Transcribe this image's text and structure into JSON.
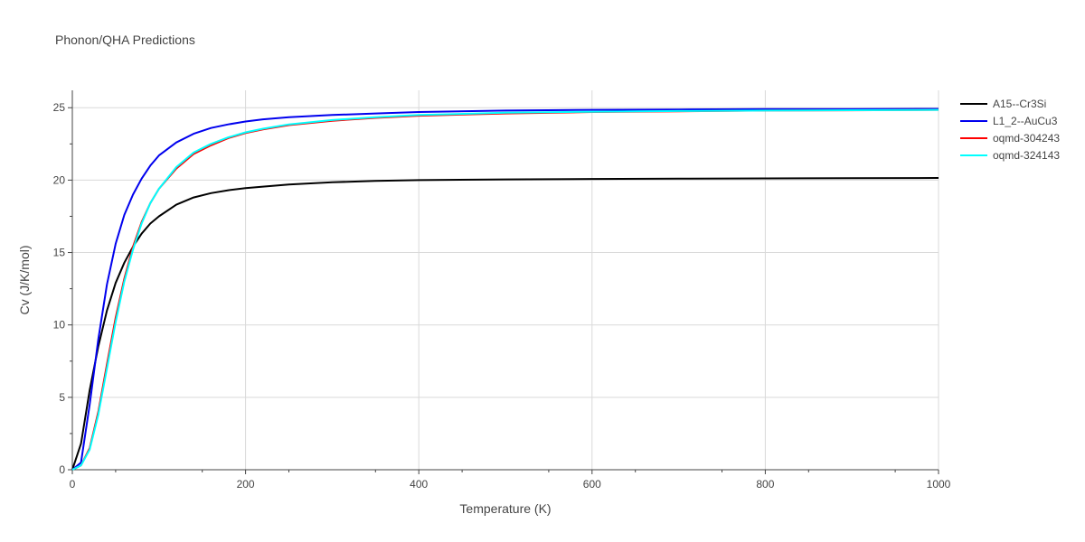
{
  "chart_data": {
    "type": "line",
    "title": "Phonon/QHA Predictions",
    "xlabel": "Temperature (K)",
    "ylabel": "Cv (J/K/mol)",
    "xlim": [
      0,
      1000
    ],
    "ylim": [
      0,
      26.2
    ],
    "x_ticks": [
      0,
      200,
      400,
      600,
      800,
      1000
    ],
    "y_ticks": [
      0,
      5,
      10,
      15,
      20,
      25
    ],
    "grid": true,
    "legend_position": "right",
    "series": [
      {
        "name": "A15--Cr3Si",
        "color": "#000000",
        "x": [
          0,
          10,
          20,
          30,
          40,
          50,
          60,
          70,
          80,
          90,
          100,
          120,
          140,
          160,
          180,
          200,
          220,
          250,
          300,
          350,
          400,
          500,
          600,
          700,
          800,
          900,
          1000
        ],
        "y": [
          0,
          1.8,
          5.5,
          8.5,
          11.0,
          12.9,
          14.3,
          15.4,
          16.3,
          17.0,
          17.5,
          18.3,
          18.8,
          19.1,
          19.3,
          19.45,
          19.55,
          19.7,
          19.85,
          19.95,
          20.0,
          20.05,
          20.08,
          20.1,
          20.12,
          20.13,
          20.15
        ]
      },
      {
        "name": "L1_2--AuCu3",
        "color": "#0000ee",
        "x": [
          0,
          10,
          20,
          30,
          40,
          50,
          60,
          70,
          80,
          90,
          100,
          120,
          140,
          160,
          180,
          200,
          220,
          250,
          300,
          350,
          400,
          500,
          600,
          700,
          800,
          900,
          1000
        ],
        "y": [
          0,
          0.5,
          4.5,
          9.0,
          12.8,
          15.6,
          17.6,
          19.0,
          20.1,
          21.0,
          21.7,
          22.6,
          23.2,
          23.6,
          23.85,
          24.05,
          24.2,
          24.35,
          24.5,
          24.6,
          24.7,
          24.8,
          24.85,
          24.88,
          24.9,
          24.91,
          24.92
        ]
      },
      {
        "name": "oqmd-304243",
        "color": "#ff0000",
        "x": [
          0,
          10,
          20,
          30,
          40,
          50,
          60,
          70,
          80,
          90,
          100,
          120,
          140,
          160,
          180,
          200,
          220,
          250,
          300,
          350,
          400,
          500,
          600,
          700,
          800,
          900,
          1000
        ],
        "y": [
          0,
          0.3,
          1.5,
          4.0,
          7.3,
          10.5,
          13.2,
          15.4,
          17.1,
          18.4,
          19.4,
          20.8,
          21.8,
          22.4,
          22.9,
          23.25,
          23.5,
          23.8,
          24.1,
          24.3,
          24.45,
          24.6,
          24.7,
          24.75,
          24.8,
          24.82,
          24.85
        ]
      },
      {
        "name": "oqmd-324143",
        "color": "#00ffff",
        "x": [
          0,
          10,
          20,
          30,
          40,
          50,
          60,
          70,
          80,
          90,
          100,
          120,
          140,
          160,
          180,
          200,
          220,
          250,
          300,
          350,
          400,
          500,
          600,
          700,
          800,
          900,
          1000
        ],
        "y": [
          0,
          0.3,
          1.4,
          3.8,
          7.0,
          10.2,
          13.0,
          15.2,
          17.0,
          18.4,
          19.4,
          20.9,
          21.9,
          22.5,
          22.95,
          23.3,
          23.55,
          23.85,
          24.15,
          24.35,
          24.5,
          24.65,
          24.72,
          24.77,
          24.8,
          24.83,
          24.85
        ]
      }
    ]
  }
}
